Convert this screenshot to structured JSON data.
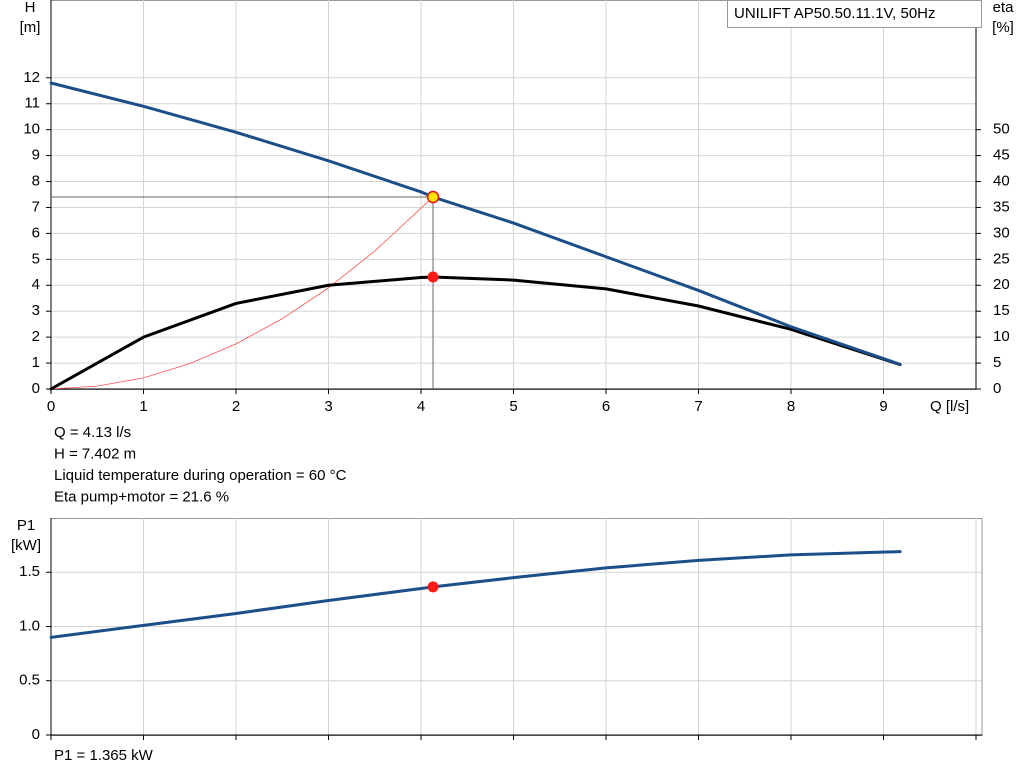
{
  "chart_data": [
    {
      "type": "line",
      "title": "UNILIFT AP50.50.11.1V, 50Hz",
      "ylabel": "H",
      "yunit": "[m]",
      "y2label": "eta",
      "y2unit": "[%]",
      "xlabel": "Q [l/s]",
      "xlim": [
        0,
        10
      ],
      "xticks": [
        0,
        1,
        2,
        3,
        4,
        5,
        6,
        7,
        8,
        9
      ],
      "ylim": [
        0,
        15
      ],
      "yticks": [
        0,
        1,
        2,
        3,
        4,
        5,
        6,
        7,
        8,
        9,
        10,
        11,
        12
      ],
      "y2lim": [
        0,
        75
      ],
      "y2ticks": [
        0,
        5,
        10,
        15,
        20,
        25,
        30,
        35,
        40,
        45,
        50
      ],
      "grid": true,
      "series": [
        {
          "axis": "y",
          "color": "#1c4f8a",
          "width": 3,
          "x": [
            0,
            1,
            2,
            3,
            4,
            4.13,
            5,
            6,
            7,
            8,
            9.18
          ],
          "values": [
            11.8,
            10.9,
            9.9,
            8.8,
            7.6,
            7.402,
            6.4,
            5.1,
            3.8,
            2.4,
            0.95
          ],
          "marker_index": 5,
          "marker_color": "#ffe600",
          "crosshair": true
        },
        {
          "axis": "y2",
          "color": "#000000",
          "width": 3,
          "x": [
            0,
            1,
            2,
            3,
            4,
            4.13,
            5,
            6,
            7,
            8,
            9.18
          ],
          "values": [
            0,
            10,
            16.5,
            20,
            21.5,
            21.6,
            21,
            19.3,
            16,
            11.5,
            4.7
          ],
          "marker_index": 5,
          "marker_color": "#ff1a1a"
        },
        {
          "axis": "y",
          "color": "#ff5050",
          "width": 0.8,
          "x": [
            0,
            0.5,
            1,
            1.5,
            2,
            2.5,
            3,
            3.5,
            4.13
          ],
          "values": [
            0,
            0.11,
            0.43,
            0.98,
            1.74,
            2.71,
            3.9,
            5.32,
            7.402
          ]
        }
      ],
      "annotations": [
        "Q = 4.13 l/s",
        "H = 7.402 m",
        "Liquid temperature during operation = 60 °C",
        "Eta pump+motor = 21.6 %"
      ]
    },
    {
      "type": "line",
      "ylabel": "P1",
      "yunit": "[kW]",
      "xlim": [
        0,
        10
      ],
      "xticks": [
        0,
        1,
        2,
        3,
        4,
        5,
        6,
        7,
        8,
        9,
        10
      ],
      "xtick_labels": false,
      "ylim": [
        0,
        2
      ],
      "yticks": [
        0,
        0.5,
        {
          "value": 1,
          "label": "1.0"
        },
        1.5
      ],
      "grid": true,
      "series": [
        {
          "axis": "y",
          "color": "#1c4f8a",
          "width": 3,
          "x": [
            0,
            1,
            2,
            3,
            4,
            4.13,
            5,
            6,
            7,
            8,
            9.18
          ],
          "values": [
            0.9,
            1.01,
            1.12,
            1.24,
            1.35,
            1.365,
            1.45,
            1.54,
            1.61,
            1.66,
            1.69
          ],
          "marker_index": 5,
          "marker_color": "#ff1a1a"
        }
      ],
      "annotations": [
        "P1 = 1.365 kW"
      ]
    }
  ]
}
